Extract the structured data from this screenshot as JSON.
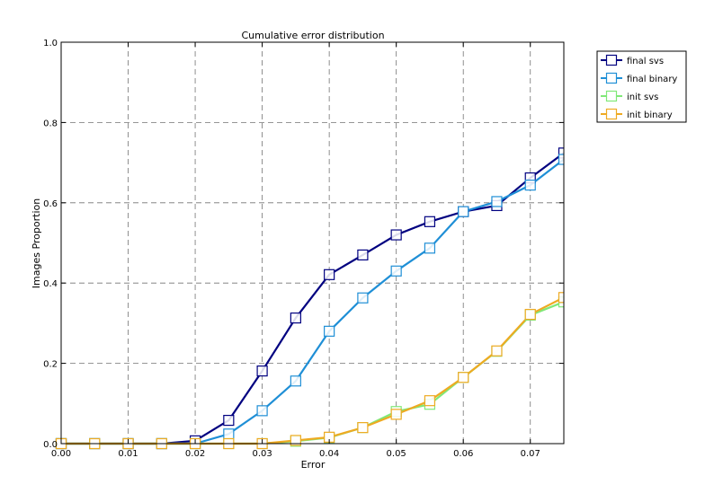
{
  "chart_data": {
    "type": "line",
    "title": "Cumulative error distribution",
    "xlabel": "Error",
    "ylabel": "Images Proportion",
    "xlim": [
      0.0,
      0.075
    ],
    "ylim": [
      0.0,
      1.0
    ],
    "x_ticks": [
      0.0,
      0.01,
      0.02,
      0.03,
      0.04,
      0.05,
      0.06,
      0.07
    ],
    "x_tick_labels": [
      "0.00",
      "0.01",
      "0.02",
      "0.03",
      "0.04",
      "0.05",
      "0.06",
      "0.07"
    ],
    "y_ticks": [
      0.0,
      0.2,
      0.4,
      0.6,
      0.8,
      1.0
    ],
    "y_tick_labels": [
      "0.0",
      "0.2",
      "0.4",
      "0.6",
      "0.8",
      "1.0"
    ],
    "grid": true,
    "legend_position": "outside-top-right",
    "x": [
      0.0,
      0.005,
      0.01,
      0.015,
      0.02,
      0.025,
      0.03,
      0.035,
      0.04,
      0.045,
      0.05,
      0.055,
      0.06,
      0.065,
      0.07,
      0.075
    ],
    "series": [
      {
        "name": "final svs",
        "color": "#000080",
        "values": [
          0,
          0,
          0,
          0,
          0.007,
          0.058,
          0.181,
          0.313,
          0.421,
          0.47,
          0.52,
          0.553,
          0.578,
          0.593,
          0.662,
          0.724
        ]
      },
      {
        "name": "final binary",
        "color": "#1f8fd6",
        "values": [
          0,
          0,
          0,
          0,
          0,
          0.024,
          0.082,
          0.156,
          0.28,
          0.363,
          0.43,
          0.487,
          0.578,
          0.603,
          0.644,
          0.708
        ]
      },
      {
        "name": "init svs",
        "color": "#80e878",
        "values": [
          0,
          0,
          0,
          0,
          0,
          0,
          0,
          0.006,
          0.015,
          0.04,
          0.08,
          0.098,
          0.165,
          0.23,
          0.32,
          0.353
        ]
      },
      {
        "name": "init binary",
        "color": "#eeaa22",
        "values": [
          0,
          0,
          0,
          0,
          0,
          0,
          0,
          0.008,
          0.016,
          0.04,
          0.073,
          0.107,
          0.165,
          0.231,
          0.322,
          0.364
        ]
      }
    ]
  }
}
